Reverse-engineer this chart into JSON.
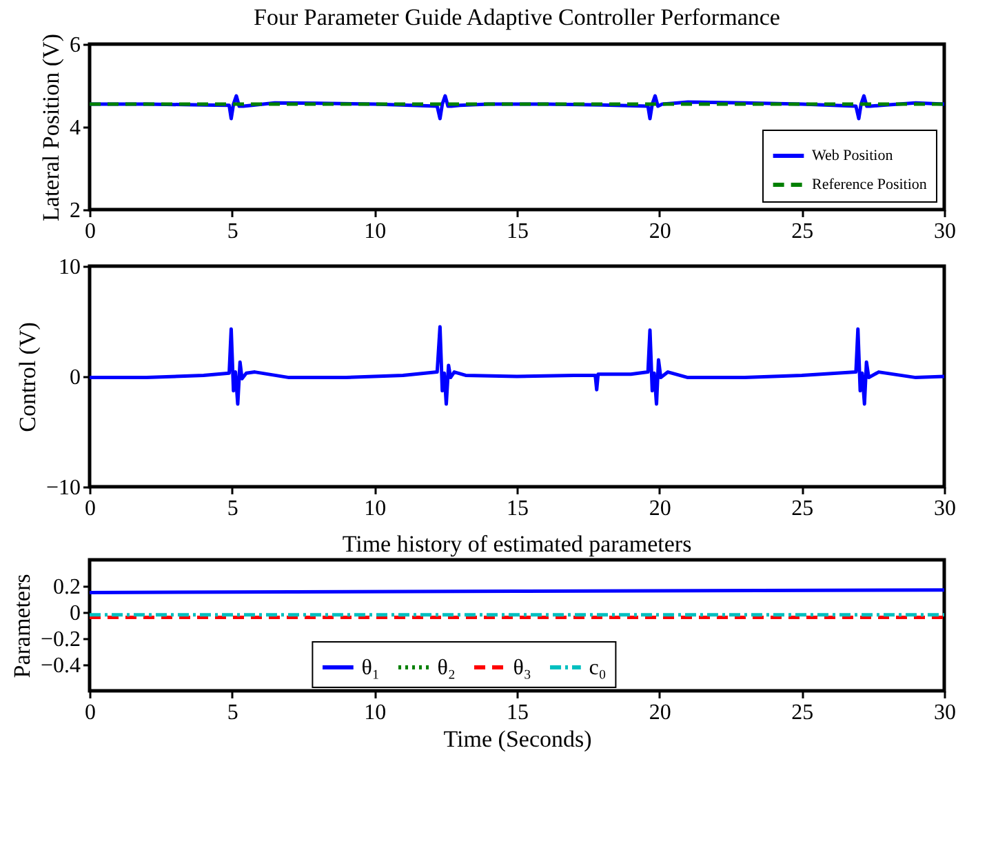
{
  "chart_data": [
    {
      "type": "line",
      "title": "Four Parameter Guide Adaptive Controller Performance",
      "ylabel": "Lateral Position (V)",
      "xlim": [
        0,
        30
      ],
      "xticks": [
        0,
        5,
        10,
        15,
        20,
        25,
        30
      ],
      "ylim": [
        2,
        6
      ],
      "yticks": [
        2,
        4,
        6
      ],
      "grid": false,
      "legend": "bottom right",
      "marker": "none",
      "series": [
        {
          "name": "Web Position",
          "color": "#0000ff",
          "line_style": "solid",
          "x": [
            0,
            2,
            4,
            4.9,
            4.97,
            5.05,
            5.15,
            5.25,
            5.4,
            5.7,
            6.5,
            8,
            10,
            12.2,
            12.3,
            12.38,
            12.48,
            12.58,
            12.7,
            13,
            14,
            16,
            18,
            19.6,
            19.67,
            19.75,
            19.85,
            19.95,
            20.1,
            20.5,
            21,
            23,
            25,
            26.9,
            27.0,
            27.08,
            27.18,
            27.28,
            27.4,
            27.8,
            29,
            30
          ],
          "values": [
            4.55,
            4.55,
            4.53,
            4.52,
            4.2,
            4.55,
            4.75,
            4.5,
            4.5,
            4.52,
            4.58,
            4.57,
            4.55,
            4.5,
            4.2,
            4.55,
            4.75,
            4.5,
            4.5,
            4.52,
            4.55,
            4.55,
            4.53,
            4.5,
            4.2,
            4.55,
            4.75,
            4.5,
            4.55,
            4.57,
            4.6,
            4.58,
            4.55,
            4.5,
            4.2,
            4.55,
            4.75,
            4.5,
            4.5,
            4.52,
            4.58,
            4.55
          ]
        },
        {
          "name": "Reference Position",
          "color": "#008000",
          "line_style": "dashed",
          "x": [
            0,
            30
          ],
          "values": [
            4.55,
            4.55
          ]
        }
      ]
    },
    {
      "type": "line",
      "ylabel": "Control (V)",
      "xlim": [
        0,
        30
      ],
      "xticks": [
        0,
        5,
        10,
        15,
        20,
        25,
        30
      ],
      "ylim": [
        -10,
        10
      ],
      "yticks": [
        -10,
        0,
        10
      ],
      "grid": false,
      "legend": false,
      "marker": "none",
      "series": [
        {
          "color": "#0000ff",
          "line_style": "solid",
          "x": [
            0,
            2,
            4,
            4.9,
            4.97,
            5.05,
            5.12,
            5.2,
            5.28,
            5.35,
            5.5,
            5.8,
            7,
            9,
            11,
            12.2,
            12.3,
            12.38,
            12.45,
            12.52,
            12.6,
            12.67,
            12.8,
            13.2,
            15,
            17,
            17.75,
            17.8,
            17.85,
            19,
            19.6,
            19.67,
            19.75,
            19.82,
            19.9,
            19.97,
            20.05,
            20.3,
            21,
            23,
            25,
            26.9,
            26.97,
            27.05,
            27.12,
            27.2,
            27.27,
            27.35,
            27.7,
            29,
            30
          ],
          "values": [
            -0.1,
            -0.1,
            0.1,
            0.3,
            4.3,
            -1.3,
            0.4,
            -2.5,
            1.3,
            -0.2,
            0.3,
            0.4,
            -0.1,
            -0.1,
            0.1,
            0.4,
            4.5,
            -1.3,
            0.3,
            -2.5,
            1.0,
            -0.1,
            0.4,
            0.1,
            0,
            0.1,
            0.1,
            -1.2,
            0.2,
            0.2,
            0.4,
            4.2,
            -1.3,
            0.3,
            -2.5,
            1.5,
            -0.1,
            0.4,
            -0.1,
            -0.1,
            0.1,
            0.4,
            4.3,
            -1.3,
            0.3,
            -2.5,
            1.3,
            -0.1,
            0.4,
            -0.1,
            0
          ]
        }
      ]
    },
    {
      "type": "line",
      "title": "Time history of estimated parameters",
      "xlabel": "Time (Seconds)",
      "ylabel": "Parameters",
      "xlim": [
        0,
        30
      ],
      "xticks": [
        0,
        5,
        10,
        15,
        20,
        25,
        30
      ],
      "ylim": [
        -0.6,
        0.4
      ],
      "yticks": [
        -0.4,
        -0.2,
        {
          "value": 0,
          "label": "0"
        },
        0.2
      ],
      "grid": false,
      "legend": "bottom",
      "marker": "none",
      "series": [
        {
          "name": "θ₁",
          "color": "#0000ff",
          "line_style": "solid",
          "x": [
            0,
            15,
            30
          ],
          "values": [
            0.15,
            0.16,
            0.17
          ]
        },
        {
          "name": "θ₂",
          "color": "#008000",
          "line_style": "dotted",
          "values": [
            null,
            null
          ]
        },
        {
          "name": "θ₃",
          "color": "#ff0000",
          "line_style": "dashed",
          "x": [
            0,
            30
          ],
          "values": [
            -0.04,
            -0.04
          ]
        },
        {
          "name": "c₀",
          "color": "#00bfbf",
          "line_style": "dashdot",
          "x": [
            0,
            30
          ],
          "values": [
            -0.02,
            -0.02
          ]
        }
      ]
    }
  ]
}
